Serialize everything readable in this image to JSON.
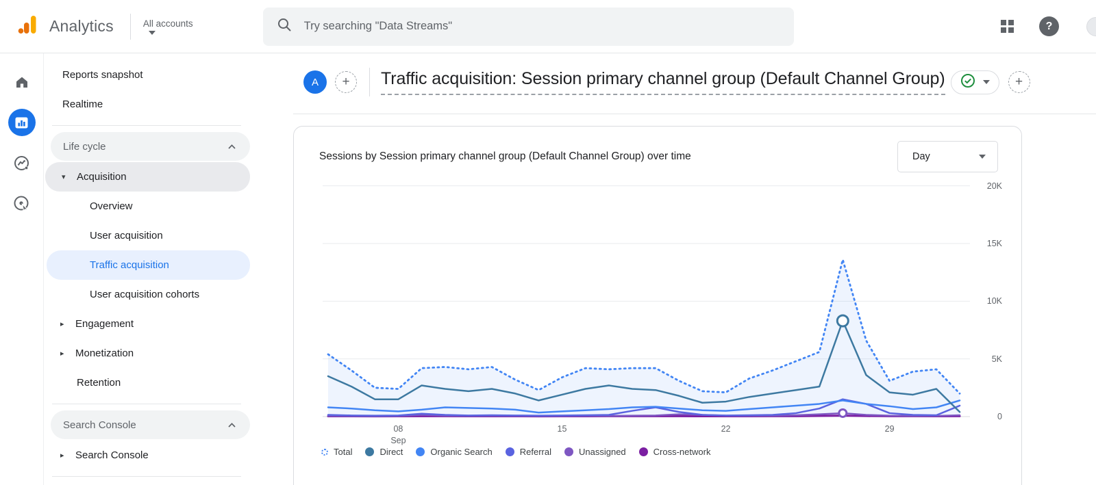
{
  "topbar": {
    "brand": "Analytics",
    "logo_icon": "google-analytics-bars",
    "account_label": "All accounts",
    "search_placeholder": "Try searching \"Data Streams\"",
    "icons": {
      "search": "magnifier",
      "apps": "apps-grid",
      "help": "question-mark"
    }
  },
  "rail": {
    "items": [
      {
        "id": "home",
        "icon": "home-icon",
        "active": false
      },
      {
        "id": "reports",
        "icon": "bar-chart-icon",
        "active": true
      },
      {
        "id": "explore",
        "icon": "explore-trend-icon",
        "active": false
      },
      {
        "id": "advertising",
        "icon": "advertising-target-icon",
        "active": false
      }
    ]
  },
  "sidebar": {
    "top_items": [
      "Reports snapshot",
      "Realtime"
    ],
    "lifecycle": {
      "header": "Life cycle",
      "acquisition": {
        "label": "Acquisition",
        "children": [
          "Overview",
          "User acquisition",
          "Traffic acquisition",
          "User acquisition cohorts"
        ],
        "active_child": "Traffic acquisition"
      },
      "collapsed_items": [
        "Engagement",
        "Monetization"
      ],
      "retention": "Retention"
    },
    "search_console": {
      "header": "Search Console",
      "item": "Search Console"
    }
  },
  "report_header": {
    "avatar_letter": "A",
    "add_comparison": "+",
    "title": "Traffic acquisition: Session primary channel group (Default Channel Group)",
    "add_button": "+"
  },
  "chart_card": {
    "title": "Sessions by Session primary channel group (Default Channel Group) over time",
    "granularity_selector": "Day"
  },
  "colors": {
    "accent": "#1A73E8",
    "active_pill": "#E8F0FE",
    "grid_line": "#E9EBEE",
    "baseline": "#D8DADE",
    "tick_text": "#5F6368"
  },
  "chart_data": {
    "type": "line",
    "title": "Sessions by Session primary channel group (Default Channel Group) over time",
    "granularity": "Day",
    "grid": "horizontal",
    "legend_position": "bottom",
    "ylim": [
      0,
      20000
    ],
    "x": [
      "Sep 5",
      "Sep 6",
      "Sep 7",
      "Sep 8",
      "Sep 9",
      "Sep 10",
      "Sep 11",
      "Sep 12",
      "Sep 13",
      "Sep 14",
      "Sep 15",
      "Sep 16",
      "Sep 17",
      "Sep 18",
      "Sep 19",
      "Sep 20",
      "Sep 21",
      "Sep 22",
      "Sep 23",
      "Sep 24",
      "Sep 25",
      "Sep 26",
      "Sep 27",
      "Sep 28",
      "Sep 29",
      "Sep 30",
      "Oct 1",
      "Oct 2"
    ],
    "x_ticks": [
      {
        "label": "08",
        "sublabel": "Sep",
        "index": 3
      },
      {
        "label": "15",
        "index": 10
      },
      {
        "label": "22",
        "index": 17
      },
      {
        "label": "29",
        "index": 24
      }
    ],
    "y_ticks": [
      {
        "label": "20K",
        "value": 20000
      },
      {
        "label": "15K",
        "value": 15000
      },
      {
        "label": "10K",
        "value": 10000
      },
      {
        "label": "5K",
        "value": 5000
      },
      {
        "label": "0",
        "value": 0
      }
    ],
    "series": [
      {
        "name": "Total",
        "color": "#4285F4",
        "style": "dotted",
        "fill_color": "rgba(66,133,244,0.09)",
        "values": [
          5400,
          4000,
          2500,
          2400,
          4200,
          4300,
          4100,
          4300,
          3200,
          2300,
          3400,
          4200,
          4100,
          4200,
          4200,
          3100,
          2200,
          2100,
          3300,
          4000,
          4800,
          5600,
          13600,
          6600,
          3100,
          3900,
          4100,
          2000
        ]
      },
      {
        "name": "Direct",
        "color": "#3D79A1",
        "style": "solid",
        "marker_index": 22,
        "marker_r": 8,
        "values": [
          3500,
          2600,
          1500,
          1500,
          2700,
          2400,
          2200,
          2400,
          2000,
          1400,
          1900,
          2400,
          2700,
          2400,
          2300,
          1800,
          1200,
          1300,
          1700,
          2000,
          2300,
          2600,
          8300,
          3600,
          2100,
          1900,
          2400,
          400
        ]
      },
      {
        "name": "Organic Search",
        "color": "#4285F4",
        "style": "solid",
        "values": [
          800,
          700,
          550,
          450,
          600,
          800,
          750,
          700,
          600,
          350,
          450,
          550,
          650,
          800,
          850,
          700,
          550,
          500,
          650,
          800,
          950,
          1100,
          1400,
          1100,
          900,
          650,
          800,
          1400
        ]
      },
      {
        "name": "Referral",
        "color": "#5A63E0",
        "style": "solid",
        "values": [
          150,
          100,
          80,
          100,
          250,
          150,
          100,
          120,
          100,
          80,
          100,
          120,
          150,
          500,
          800,
          400,
          150,
          100,
          120,
          150,
          300,
          700,
          1500,
          1100,
          300,
          150,
          120,
          950
        ]
      },
      {
        "name": "Unassigned",
        "color": "#7E57C2",
        "style": "solid",
        "marker_index": 22,
        "marker_r": 5.5,
        "values": [
          60,
          50,
          40,
          50,
          150,
          80,
          60,
          70,
          60,
          50,
          60,
          70,
          60,
          80,
          100,
          200,
          150,
          80,
          70,
          80,
          120,
          200,
          300,
          150,
          80,
          70,
          60,
          120
        ]
      },
      {
        "name": "Cross-network",
        "color": "#7B1FA2",
        "style": "solid",
        "width": 3,
        "values": [
          30,
          30,
          25,
          30,
          40,
          35,
          30,
          30,
          30,
          25,
          30,
          30,
          35,
          40,
          40,
          35,
          30,
          30,
          30,
          35,
          40,
          60,
          80,
          50,
          40,
          35,
          30,
          40
        ]
      }
    ]
  }
}
